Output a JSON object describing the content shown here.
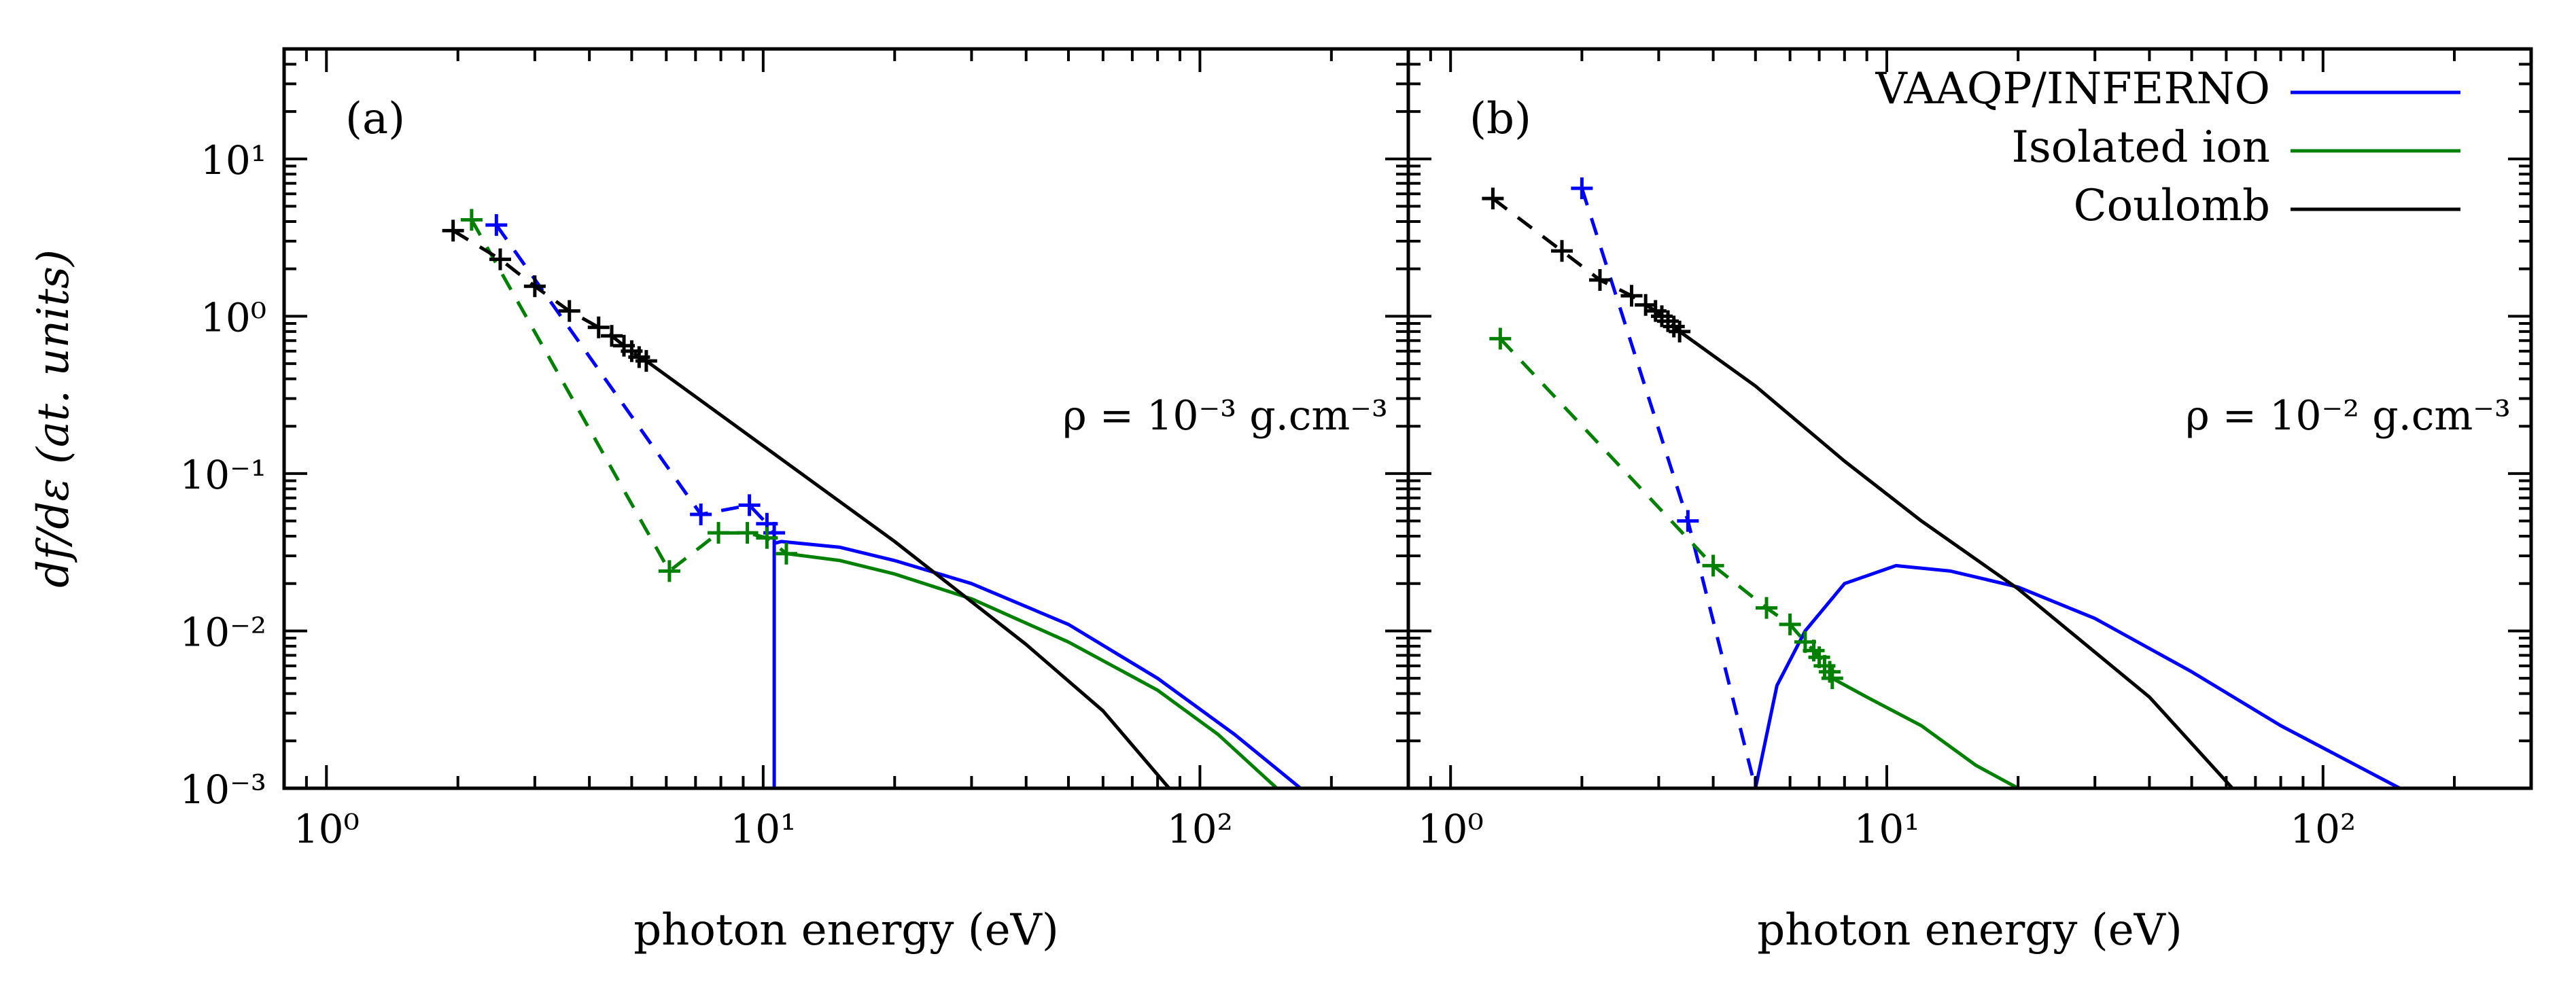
{
  "figure_title": "",
  "legend": {
    "entries": [
      {
        "label": "VAAQP/INFERNO",
        "color": "#0000ff"
      },
      {
        "label": "Isolated ion",
        "color": "#008000"
      },
      {
        "label": "Coulomb",
        "color": "#000000"
      }
    ]
  },
  "chart_data": [
    {
      "type": "line",
      "panel_label": "(a)",
      "annotation": "ρ = 10⁻³ g.cm⁻³",
      "xlabel": "photon energy (eV)",
      "ylabel": "df/dε (at. units)",
      "xscale": "log",
      "yscale": "log",
      "xlim": [
        0.8,
        300
      ],
      "ylim": [
        0.001,
        50
      ],
      "xticks": [
        {
          "value": 1,
          "label": "10⁰"
        },
        {
          "value": 10,
          "label": "10¹"
        },
        {
          "value": 100,
          "label": "10²"
        }
      ],
      "yticks": [
        {
          "value": 0.001,
          "label": "10⁻³"
        },
        {
          "value": 0.01,
          "label": "10⁻²"
        },
        {
          "value": 0.1,
          "label": "10⁻¹"
        },
        {
          "value": 1,
          "label": "10⁰"
        },
        {
          "value": 10,
          "label": "10¹"
        }
      ],
      "series": [
        {
          "name": "VAAQP/INFERNO",
          "color": "#0000ff",
          "style": "dashed-markers",
          "points": [
            [
              2.45,
              3.8
            ],
            [
              7.2,
              0.055
            ],
            [
              9.3,
              0.063
            ],
            [
              10.2,
              0.048
            ],
            [
              10.6,
              0.042
            ]
          ]
        },
        {
          "name": "VAAQP/INFERNO",
          "color": "#0000ff",
          "style": "solid",
          "points": [
            [
              10.6,
              0.001
            ],
            [
              10.6,
              0.036
            ],
            [
              11,
              0.037
            ],
            [
              15,
              0.034
            ],
            [
              20,
              0.028
            ],
            [
              30,
              0.02
            ],
            [
              50,
              0.011
            ],
            [
              80,
              0.005
            ],
            [
              120,
              0.0022
            ],
            [
              170,
              0.001
            ]
          ]
        },
        {
          "name": "Isolated ion",
          "color": "#008000",
          "style": "dashed-markers",
          "points": [
            [
              2.15,
              4.1
            ],
            [
              6.1,
              0.024
            ],
            [
              7.9,
              0.042
            ],
            [
              9.2,
              0.042
            ],
            [
              10.2,
              0.039
            ],
            [
              11.3,
              0.031
            ]
          ]
        },
        {
          "name": "Isolated ion",
          "color": "#008000",
          "style": "solid",
          "points": [
            [
              11.3,
              0.031
            ],
            [
              15,
              0.028
            ],
            [
              20,
              0.023
            ],
            [
              30,
              0.016
            ],
            [
              50,
              0.0085
            ],
            [
              80,
              0.0042
            ],
            [
              110,
              0.0022
            ],
            [
              150,
              0.001
            ]
          ]
        },
        {
          "name": "Coulomb",
          "color": "#000000",
          "style": "dashed-markers",
          "points": [
            [
              1.95,
              3.5
            ],
            [
              2.5,
              2.3
            ],
            [
              3.0,
              1.55
            ],
            [
              3.6,
              1.08
            ],
            [
              4.2,
              0.85
            ],
            [
              4.5,
              0.75
            ],
            [
              4.8,
              0.65
            ],
            [
              5.0,
              0.6
            ],
            [
              5.2,
              0.55
            ],
            [
              5.4,
              0.52
            ]
          ]
        },
        {
          "name": "Coulomb",
          "color": "#000000",
          "style": "solid",
          "points": [
            [
              5.4,
              0.52
            ],
            [
              10,
              0.15
            ],
            [
              20,
              0.037
            ],
            [
              40,
              0.0082
            ],
            [
              60,
              0.0031
            ],
            [
              85,
              0.001
            ]
          ]
        }
      ]
    },
    {
      "type": "line",
      "panel_label": "(b)",
      "annotation": "ρ = 10⁻² g.cm⁻³",
      "xlabel": "photon energy (eV)",
      "ylabel": "",
      "xscale": "log",
      "yscale": "log",
      "xlim": [
        0.8,
        300
      ],
      "ylim": [
        0.001,
        50
      ],
      "xticks": [
        {
          "value": 1,
          "label": "10⁰"
        },
        {
          "value": 10,
          "label": "10¹"
        },
        {
          "value": 100,
          "label": "10²"
        }
      ],
      "yticks": [],
      "series": [
        {
          "name": "VAAQP/INFERNO",
          "color": "#0000ff",
          "style": "dashed-markers",
          "points": [
            [
              2.0,
              6.5
            ],
            [
              3.5,
              0.05
            ],
            [
              5.0,
              0.001
            ]
          ]
        },
        {
          "name": "VAAQP/INFERNO",
          "color": "#0000ff",
          "style": "solid",
          "points": [
            [
              5.0,
              0.001
            ],
            [
              5.6,
              0.0045
            ],
            [
              6.5,
              0.01
            ],
            [
              8,
              0.02
            ],
            [
              10.5,
              0.026
            ],
            [
              14,
              0.024
            ],
            [
              20,
              0.019
            ],
            [
              30,
              0.012
            ],
            [
              50,
              0.0055
            ],
            [
              80,
              0.0025
            ],
            [
              150,
              0.001
            ]
          ]
        },
        {
          "name": "Isolated ion",
          "color": "#008000",
          "style": "dashed-markers",
          "points": [
            [
              1.3,
              0.72
            ],
            [
              4.0,
              0.026
            ],
            [
              5.3,
              0.014
            ],
            [
              6.0,
              0.011
            ],
            [
              6.5,
              0.0085
            ],
            [
              6.8,
              0.0075
            ],
            [
              7.0,
              0.0068
            ],
            [
              7.2,
              0.006
            ],
            [
              7.4,
              0.0055
            ],
            [
              7.5,
              0.005
            ]
          ]
        },
        {
          "name": "Isolated ion",
          "color": "#008000",
          "style": "solid",
          "points": [
            [
              7.5,
              0.005
            ],
            [
              9,
              0.0038
            ],
            [
              12,
              0.0025
            ],
            [
              16,
              0.0014
            ],
            [
              20,
              0.001
            ]
          ]
        },
        {
          "name": "Coulomb",
          "color": "#000000",
          "style": "dashed-markers",
          "points": [
            [
              1.25,
              5.6
            ],
            [
              1.8,
              2.6
            ],
            [
              2.2,
              1.7
            ],
            [
              2.6,
              1.35
            ],
            [
              2.8,
              1.18
            ],
            [
              2.95,
              1.08
            ],
            [
              3.05,
              1.0
            ],
            [
              3.15,
              0.93
            ],
            [
              3.25,
              0.86
            ],
            [
              3.35,
              0.8
            ]
          ]
        },
        {
          "name": "Coulomb",
          "color": "#000000",
          "style": "solid",
          "points": [
            [
              3.35,
              0.8
            ],
            [
              5,
              0.36
            ],
            [
              8,
              0.12
            ],
            [
              12,
              0.05
            ],
            [
              20,
              0.0185
            ],
            [
              40,
              0.0038
            ],
            [
              62,
              0.001
            ]
          ]
        }
      ]
    }
  ]
}
